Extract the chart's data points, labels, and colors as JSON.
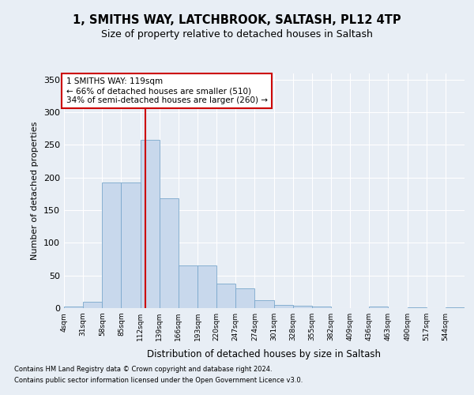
{
  "title": "1, SMITHS WAY, LATCHBROOK, SALTASH, PL12 4TP",
  "subtitle": "Size of property relative to detached houses in Saltash",
  "xlabel": "Distribution of detached houses by size in Saltash",
  "ylabel": "Number of detached properties",
  "footnote1": "Contains HM Land Registry data © Crown copyright and database right 2024.",
  "footnote2": "Contains public sector information licensed under the Open Government Licence v3.0.",
  "bar_color": "#c8d8ec",
  "bar_edge_color": "#7aa8cc",
  "vline_color": "#cc0000",
  "annotation_text": "1 SMITHS WAY: 119sqm\n← 66% of detached houses are smaller (510)\n34% of semi-detached houses are larger (260) →",
  "annotation_box_color": "#ffffff",
  "annotation_box_edge": "#cc0000",
  "bg_color": "#e8eef5",
  "plot_bg_color": "#e8eef5",
  "grid_color": "#ffffff",
  "bin_edges": [
    4,
    31,
    58,
    85,
    112,
    139,
    166,
    193,
    220,
    247,
    274,
    301,
    328,
    355,
    382,
    409,
    436,
    463,
    490,
    517,
    544,
    571
  ],
  "bar_heights": [
    2,
    10,
    192,
    192,
    258,
    168,
    65,
    65,
    37,
    30,
    12,
    5,
    4,
    3,
    0,
    0,
    2,
    0,
    1,
    0,
    1
  ],
  "categories": [
    "4sqm",
    "31sqm",
    "58sqm",
    "85sqm",
    "112sqm",
    "139sqm",
    "166sqm",
    "193sqm",
    "220sqm",
    "247sqm",
    "274sqm",
    "301sqm",
    "328sqm",
    "355sqm",
    "382sqm",
    "409sqm",
    "436sqm",
    "463sqm",
    "490sqm",
    "517sqm",
    "544sqm"
  ],
  "vline_x": 119,
  "ylim": [
    0,
    360
  ],
  "yticks": [
    0,
    50,
    100,
    150,
    200,
    250,
    300,
    350
  ]
}
